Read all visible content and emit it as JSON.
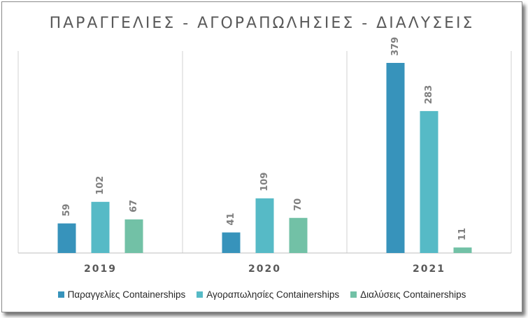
{
  "chart_data": {
    "type": "bar",
    "title": "ΠΑΡΑΓΓΕΛΙΕΣ - ΑΓΟΡΑΠΩΛΗΣΙΕΣ - ΔΙΑΛΥΣΕΙΣ",
    "categories": [
      "2019",
      "2020",
      "2021"
    ],
    "series": [
      {
        "name": "Παραγγελίες Containerships",
        "values": [
          59,
          41,
          379
        ],
        "color": "#3793bb"
      },
      {
        "name": "Αγοραπωλησίες Containerships",
        "values": [
          102,
          109,
          283
        ],
        "color": "#56bac6"
      },
      {
        "name": "Διαλύσεις Containerships",
        "values": [
          67,
          70,
          11
        ],
        "color": "#72c1a6"
      }
    ],
    "ylim": [
      0,
      400
    ],
    "grid": false,
    "legend_position": "bottom",
    "data_labels": true
  }
}
